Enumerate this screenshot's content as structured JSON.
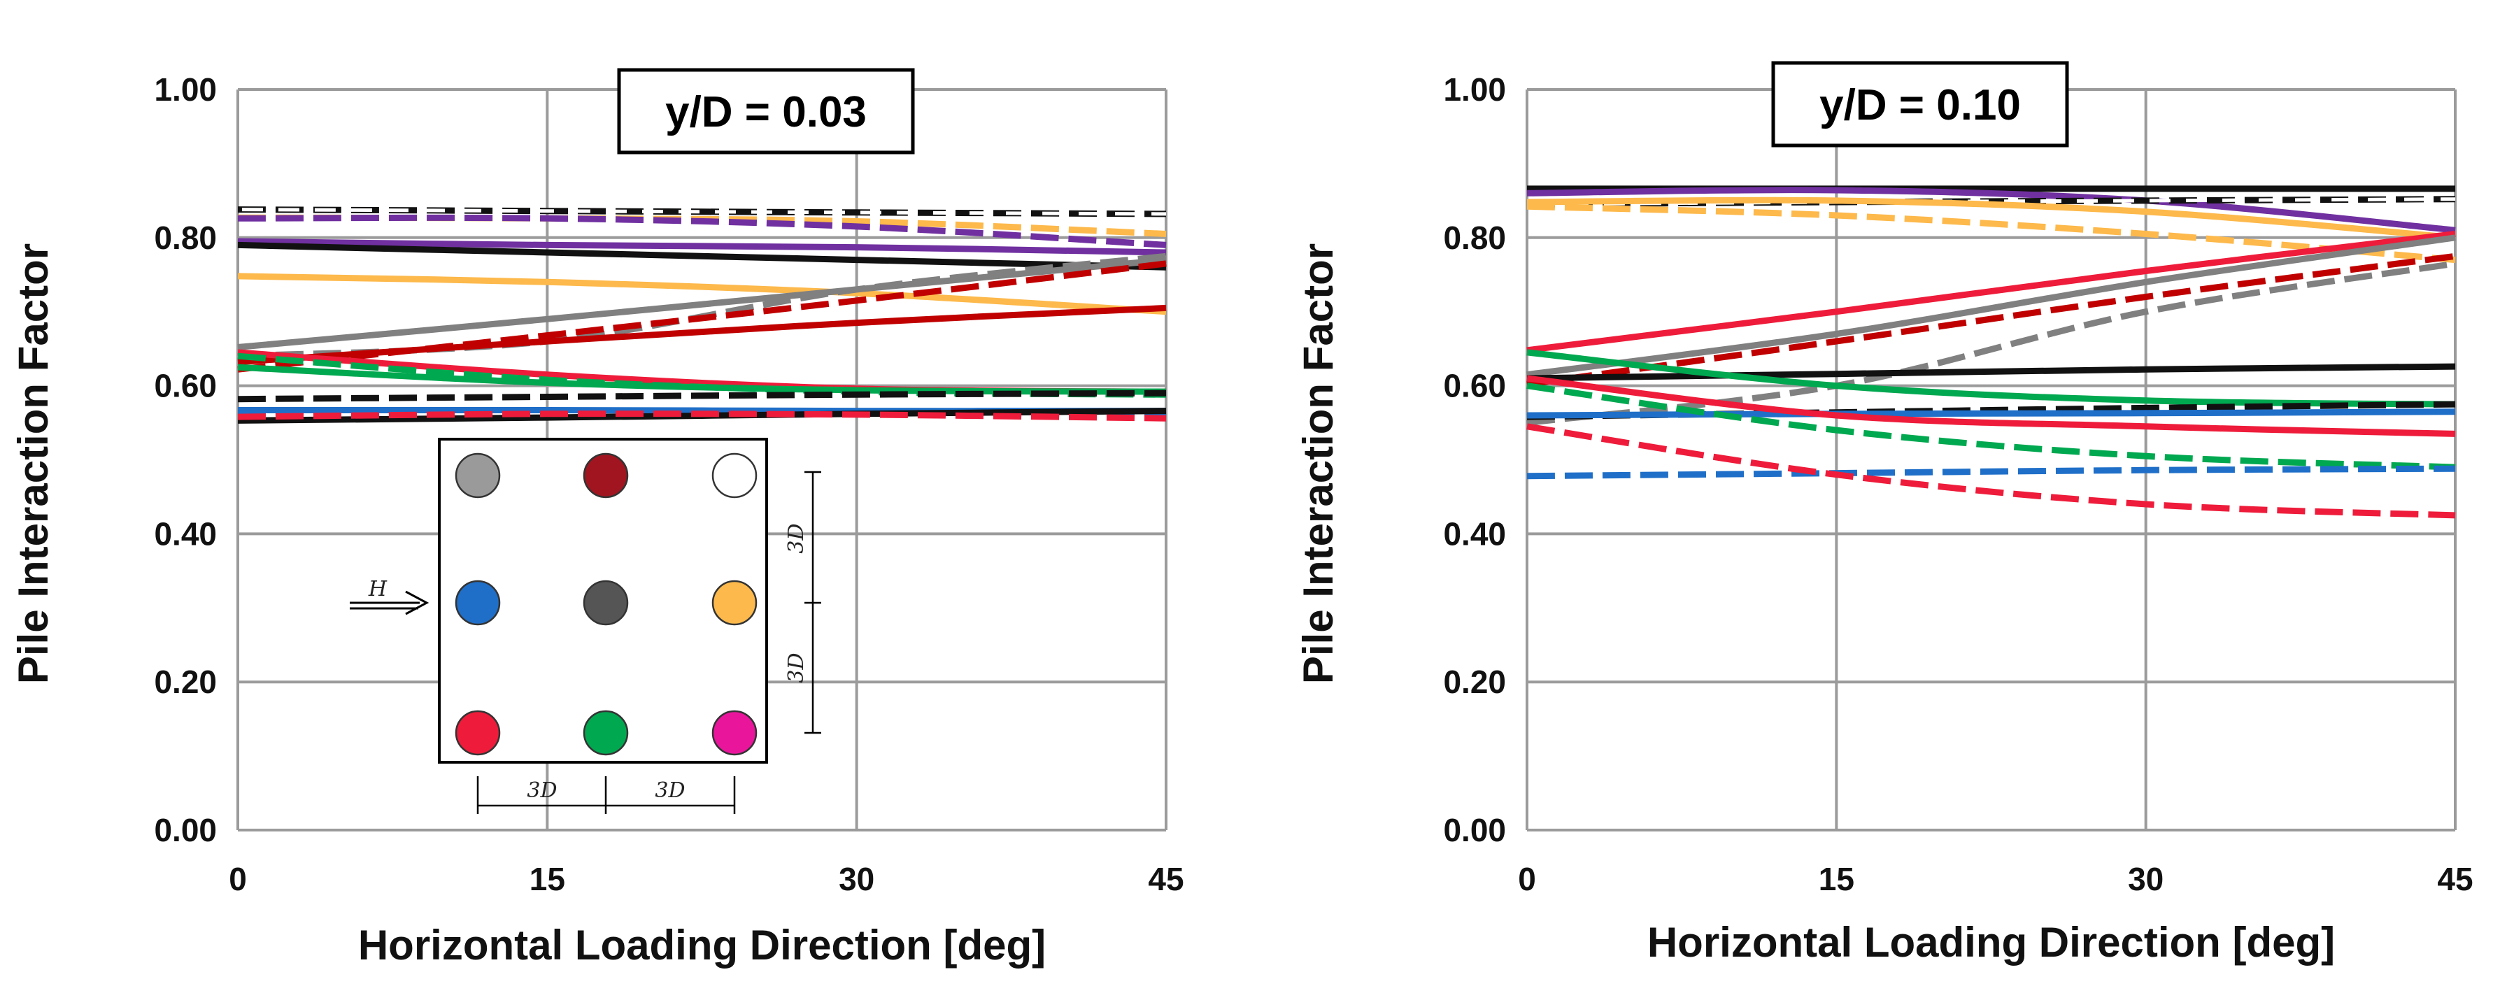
{
  "chart_data": [
    {
      "type": "line",
      "title": "y/D = 0.03",
      "xlabel": "Horizontal Loading Direction [deg]",
      "ylabel": "Pile Interaction Factor",
      "xlim": [
        0,
        45
      ],
      "ylim": [
        0,
        1
      ],
      "xticks": [
        "0",
        "15",
        "30",
        "45"
      ],
      "yticks": [
        "0.00",
        "0.20",
        "0.40",
        "0.60",
        "0.80",
        "1.00"
      ],
      "grid": true,
      "x": [
        0,
        15,
        30,
        45
      ],
      "series": [
        {
          "name": "white pile (black dashed)",
          "color": "#111111",
          "dash": true,
          "values": [
            0.838,
            0.836,
            0.834,
            0.832
          ]
        },
        {
          "name": "white pile outline",
          "color": "#ffffff",
          "dash": true,
          "values": [
            0.838,
            0.836,
            0.834,
            0.832
          ]
        },
        {
          "name": "orange (dashed)",
          "color": "#FDB94B",
          "dash": true,
          "values": [
            0.827,
            0.826,
            0.822,
            0.805
          ]
        },
        {
          "name": "purple (dashed)",
          "color": "#7030A0",
          "dash": true,
          "values": [
            0.826,
            0.826,
            0.815,
            0.79
          ]
        },
        {
          "name": "purple (solid)",
          "color": "#7030A0",
          "dash": false,
          "values": [
            0.795,
            0.79,
            0.787,
            0.78
          ]
        },
        {
          "name": "black (solid upper)",
          "color": "#111111",
          "dash": false,
          "values": [
            0.79,
            0.78,
            0.77,
            0.76
          ]
        },
        {
          "name": "orange (solid)",
          "color": "#FDB94B",
          "dash": false,
          "values": [
            0.748,
            0.74,
            0.725,
            0.7
          ]
        },
        {
          "name": "gray (solid)",
          "color": "#808080",
          "dash": false,
          "values": [
            0.652,
            0.69,
            0.73,
            0.77
          ]
        },
        {
          "name": "gray (dashed)",
          "color": "#808080",
          "dash": true,
          "values": [
            0.64,
            0.66,
            0.73,
            0.775
          ]
        },
        {
          "name": "dark red (dashed)",
          "color": "#C00000",
          "dash": true,
          "values": [
            0.622,
            0.668,
            0.715,
            0.765
          ]
        },
        {
          "name": "dark red (solid)",
          "color": "#C00000",
          "dash": false,
          "values": [
            0.632,
            0.66,
            0.685,
            0.705
          ]
        },
        {
          "name": "red (solid)",
          "color": "#EE1C3A",
          "dash": false,
          "values": [
            0.645,
            0.615,
            0.596,
            0.592
          ]
        },
        {
          "name": "green (solid)",
          "color": "#00A850",
          "dash": false,
          "values": [
            0.625,
            0.604,
            0.594,
            0.592
          ]
        },
        {
          "name": "green (dashed)",
          "color": "#00A850",
          "dash": true,
          "values": [
            0.64,
            0.608,
            0.592,
            0.588
          ]
        },
        {
          "name": "black (dashed)",
          "color": "#111111",
          "dash": true,
          "values": [
            0.582,
            0.585,
            0.588,
            0.59
          ]
        },
        {
          "name": "blue (solid)",
          "color": "#1F6FC8",
          "dash": false,
          "values": [
            0.567,
            0.567,
            0.566,
            0.566
          ]
        },
        {
          "name": "blue (dashed)",
          "color": "#1F6FC8",
          "dash": true,
          "values": [
            0.563,
            0.563,
            0.562,
            0.562
          ]
        },
        {
          "name": "black (solid lower)",
          "color": "#111111",
          "dash": false,
          "values": [
            0.553,
            0.557,
            0.562,
            0.566
          ]
        },
        {
          "name": "red (dashed)",
          "color": "#EE1C3A",
          "dash": true,
          "values": [
            0.558,
            0.562,
            0.561,
            0.556
          ]
        }
      ]
    },
    {
      "type": "line",
      "title": "y/D = 0.10",
      "xlabel": "Horizontal Loading Direction [deg]",
      "ylabel": "Pile Interaction Factor",
      "xlim": [
        0,
        45
      ],
      "ylim": [
        0,
        1
      ],
      "xticks": [
        "0",
        "15",
        "30",
        "45"
      ],
      "yticks": [
        "0.00",
        "0.20",
        "0.40",
        "0.60",
        "0.80",
        "1.00"
      ],
      "grid": true,
      "x": [
        0,
        15,
        30,
        45
      ],
      "series": [
        {
          "name": "black (solid upper)",
          "color": "#111111",
          "dash": false,
          "values": [
            0.866,
            0.866,
            0.866,
            0.866
          ]
        },
        {
          "name": "purple (solid)",
          "color": "#7030A0",
          "dash": false,
          "values": [
            0.86,
            0.864,
            0.85,
            0.81
          ]
        },
        {
          "name": "white pile (black dashed)",
          "color": "#111111",
          "dash": true,
          "values": [
            0.845,
            0.848,
            0.85,
            0.852
          ]
        },
        {
          "name": "white pile outline",
          "color": "#ffffff",
          "dash": true,
          "values": [
            0.845,
            0.848,
            0.85,
            0.852
          ]
        },
        {
          "name": "orange (solid)",
          "color": "#FDB94B",
          "dash": false,
          "values": [
            0.848,
            0.85,
            0.835,
            0.8
          ]
        },
        {
          "name": "orange (dashed)",
          "color": "#FDB94B",
          "dash": true,
          "values": [
            0.842,
            0.83,
            0.805,
            0.77
          ]
        },
        {
          "name": "red (solid upper)",
          "color": "#EE1C3A",
          "dash": false,
          "values": [
            0.648,
            0.7,
            0.755,
            0.805
          ]
        },
        {
          "name": "gray (solid)",
          "color": "#808080",
          "dash": false,
          "values": [
            0.615,
            0.67,
            0.74,
            0.8
          ]
        },
        {
          "name": "dark red (dashed)",
          "color": "#C00000",
          "dash": true,
          "values": [
            0.602,
            0.66,
            0.72,
            0.775
          ]
        },
        {
          "name": "gray (dashed)",
          "color": "#808080",
          "dash": true,
          "values": [
            0.55,
            0.6,
            0.7,
            0.765
          ]
        },
        {
          "name": "black (solid middle)",
          "color": "#111111",
          "dash": false,
          "values": [
            0.61,
            0.616,
            0.622,
            0.626
          ]
        },
        {
          "name": "green (solid)",
          "color": "#00A850",
          "dash": false,
          "values": [
            0.645,
            0.6,
            0.58,
            0.575
          ]
        },
        {
          "name": "black (dashed)",
          "color": "#111111",
          "dash": true,
          "values": [
            0.558,
            0.564,
            0.57,
            0.575
          ]
        },
        {
          "name": "blue (solid)",
          "color": "#1F6FC8",
          "dash": false,
          "values": [
            0.56,
            0.562,
            0.563,
            0.565
          ]
        },
        {
          "name": "red (solid lower)",
          "color": "#EE1C3A",
          "dash": false,
          "values": [
            0.61,
            0.56,
            0.545,
            0.535
          ]
        },
        {
          "name": "green (dashed)",
          "color": "#00A850",
          "dash": true,
          "values": [
            0.6,
            0.54,
            0.505,
            0.49
          ]
        },
        {
          "name": "blue (dashed)",
          "color": "#1F6FC8",
          "dash": true,
          "values": [
            0.478,
            0.482,
            0.486,
            0.488
          ]
        },
        {
          "name": "red (dashed)",
          "color": "#EE1C3A",
          "dash": true,
          "values": [
            0.545,
            0.48,
            0.44,
            0.425
          ]
        }
      ]
    }
  ],
  "inset": {
    "load_label": "H",
    "spacing_label": "3D",
    "piles": [
      {
        "color": "#9a9a9a"
      },
      {
        "color": "#a01520"
      },
      {
        "color": "#ffffff"
      },
      {
        "color": "#1f6fc8"
      },
      {
        "color": "#555555"
      },
      {
        "color": "#fdb94b"
      },
      {
        "color": "#ee1c3a"
      },
      {
        "color": "#00a850"
      },
      {
        "color": "#e9169c"
      }
    ]
  }
}
